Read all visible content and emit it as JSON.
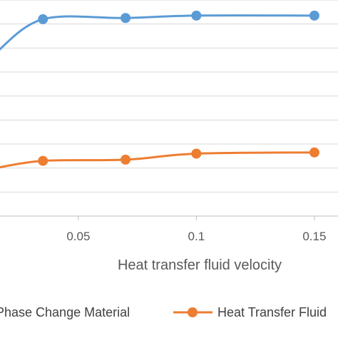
{
  "chart_data": {
    "type": "line",
    "xlabel": "Heat transfer fluid velocity",
    "ylabel": "",
    "x_ticks": [
      0.05,
      0.1,
      0.15
    ],
    "x_tick_labels": [
      "0.05",
      "0.1",
      "0.15"
    ],
    "xlim": [
      0.015,
      0.16
    ],
    "ylim": [
      0,
      9
    ],
    "grid": "horizontal",
    "series": [
      {
        "name": "Phase Change Material",
        "color": "#5B9BD5",
        "x": [
          0.015,
          0.035,
          0.07,
          0.1,
          0.15
        ],
        "y": [
          6.8,
          8.2,
          8.25,
          8.35,
          8.35
        ],
        "markers": [
          false,
          true,
          true,
          true,
          true
        ]
      },
      {
        "name": "Heat Transfer Fluid",
        "color": "#ED7D31",
        "x": [
          0.015,
          0.035,
          0.07,
          0.1,
          0.15
        ],
        "y": [
          2.0,
          2.3,
          2.35,
          2.6,
          2.65
        ],
        "markers": [
          false,
          true,
          true,
          true,
          true
        ]
      }
    ],
    "legend": {
      "placement": "bottom",
      "labels": [
        "Phase Change Material",
        "Heat Transfer Fluid"
      ]
    }
  }
}
